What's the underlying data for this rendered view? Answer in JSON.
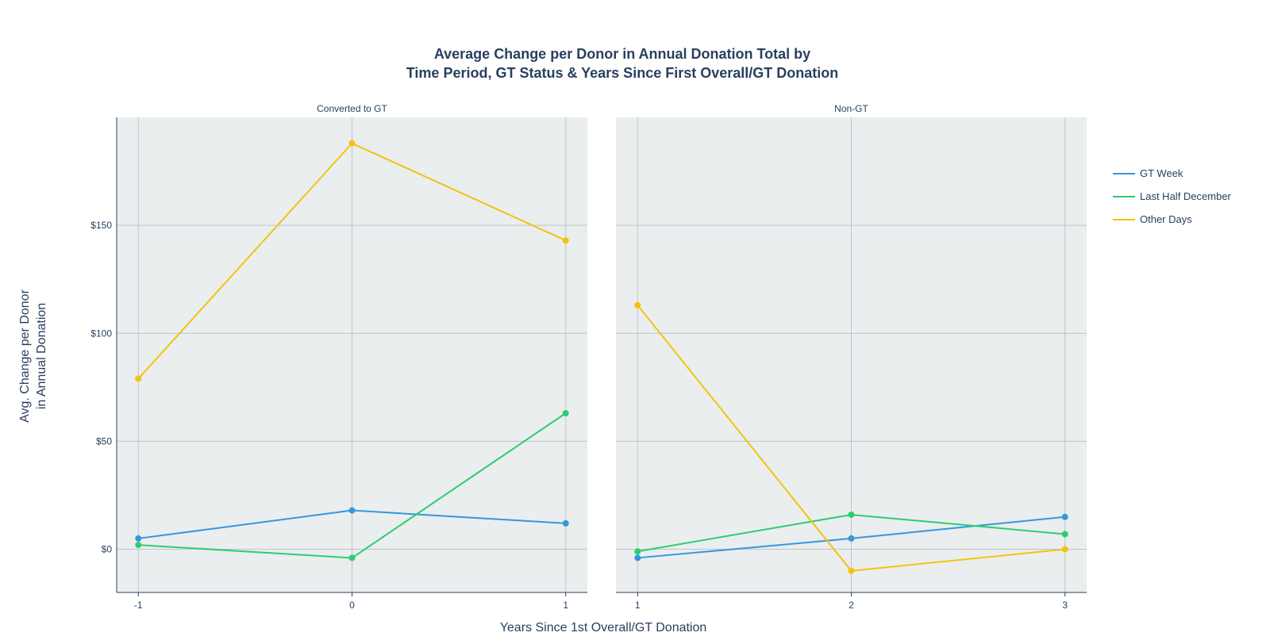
{
  "chart_data": {
    "type": "line",
    "title_line1": "Average Change per Donor in Annual Donation Total by",
    "title_line2": "Time Period, GT Status & Years Since First Overall/GT Donation",
    "xlabel": "Years Since 1st Overall/GT Donation",
    "ylabel_line1": "Avg. Change per Donor",
    "ylabel_line2": "in Annual Donation",
    "ylim": [
      -20,
      200
    ],
    "yticks": [
      {
        "value": 0,
        "label": "$0"
      },
      {
        "value": 50,
        "label": "$50"
      },
      {
        "value": 100,
        "label": "$100"
      },
      {
        "value": 150,
        "label": "$150"
      }
    ],
    "grid": true,
    "legend_position": "right",
    "panel_bg": "#eaeeee",
    "grid_color": "#c0c4c8",
    "legend": [
      {
        "name": "GT Week",
        "color": "#3498db"
      },
      {
        "name": "Last Half December",
        "color": "#2ecc71"
      },
      {
        "name": "Other Days",
        "color": "#f1c40f"
      }
    ],
    "panels": [
      {
        "title": "Converted to GT",
        "x": [
          -1,
          0,
          1
        ],
        "xticks": [
          "-1",
          "0",
          "1"
        ],
        "series": [
          {
            "name": "GT Week",
            "color": "#3498db",
            "values": [
              5,
              18,
              12
            ]
          },
          {
            "name": "Last Half December",
            "color": "#2ecc71",
            "values": [
              2,
              -4,
              63
            ]
          },
          {
            "name": "Other Days",
            "color": "#f1c40f",
            "values": [
              79,
              188,
              143
            ]
          }
        ]
      },
      {
        "title": "Non-GT",
        "x": [
          1,
          2,
          3
        ],
        "xticks": [
          "1",
          "2",
          "3"
        ],
        "series": [
          {
            "name": "GT Week",
            "color": "#3498db",
            "values": [
              -4,
              5,
              15
            ]
          },
          {
            "name": "Last Half December",
            "color": "#2ecc71",
            "values": [
              -1,
              16,
              7
            ]
          },
          {
            "name": "Other Days",
            "color": "#f1c40f",
            "values": [
              113,
              -10,
              0
            ]
          }
        ]
      }
    ]
  }
}
